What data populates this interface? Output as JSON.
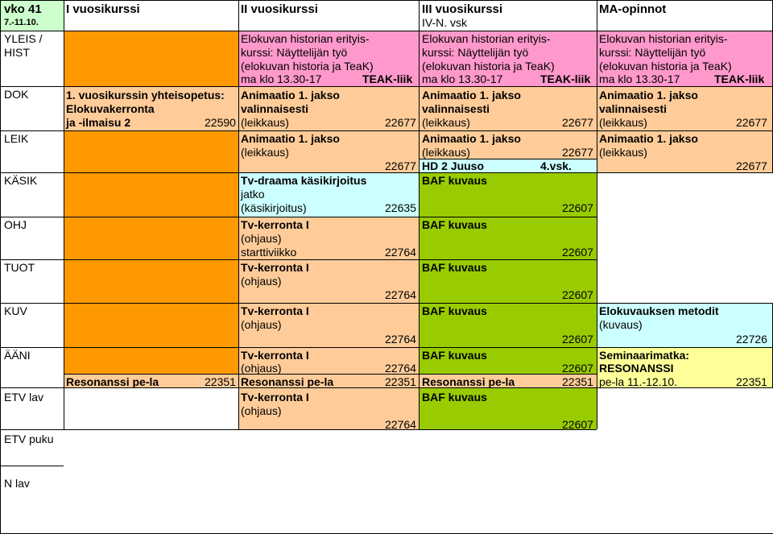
{
  "colors": {
    "header": "#ccffcc",
    "pink": "#ff99cc",
    "orange": "#ffcc99",
    "bright_orange": "#ff9900",
    "green": "#99cc00",
    "cyan": "#ccffff",
    "yellow": "#ffff99",
    "white": "#ffffff"
  },
  "header": {
    "week": "vko 41",
    "dates": "7.-11.10.",
    "year1": "I vuosikurssi",
    "year2": "II vuosikurssi",
    "year3": "III vuosikurssi",
    "year3_sub": "IV-N. vsk",
    "ma": "MA-opinnot"
  },
  "rows": {
    "yleis_1": "YLEIS /",
    "yleis_2": "HIST",
    "dok": "DOK",
    "leik": "LEIK",
    "kasik": "KÄSIK",
    "ohj": "OHJ",
    "tuot": "TUOT",
    "kuv": "KUV",
    "aani": "ÄÄNI",
    "etv_lav": "ETV lav",
    "etv_puku": "ETV puku",
    "n_lav": "N lav"
  },
  "blocks": {
    "hist_l1": "Elokuvan historian erityis-",
    "hist_l2": "kurssi: Näyttelijän työ",
    "hist_l3": "(elokuvan historia ja TeaK)",
    "hist_time": "ma klo 13.30-17",
    "hist_place": "TEAK-liik",
    "dok1_l1": "1. vuosikurssin yhteisopetus:",
    "dok1_l2": "Elokuvakerronta",
    "dok1_l3": "ja -ilmaisu 2",
    "dok1_code": "22590",
    "anim_title": "Animaatio 1. jakso",
    "anim_valinn": "valinnaisesti",
    "anim_leik": "(leikkaus)",
    "anim_code": "22677",
    "hd_text": "HD 2 Juuso",
    "hd_vsk": "4.vsk.",
    "tvd_l1": "Tv-draama käsikirjoitus",
    "tvd_l2": "jatko",
    "tvd_l3": "(käsikirjoitus)",
    "tvd_code": "22635",
    "tvk_title": "Tv-kerronta I",
    "tvk_ohjaus": "(ohjaus)",
    "tvk_start": "starttiviikko",
    "tvk_code": "22764",
    "baf_title": "BAF kuvaus",
    "baf_code": "22607",
    "met_l1": "Elokuvauksen metodit",
    "met_l2": "(kuvaus)",
    "met_code": "22726",
    "sem_l1": "Seminaarimatka:",
    "sem_l2": "RESONANSSI",
    "sem_l3": "pe-la 11.-12.10.",
    "sem_code": "22351",
    "res_title": "Resonanssi pe-la",
    "res_code": "22351"
  }
}
